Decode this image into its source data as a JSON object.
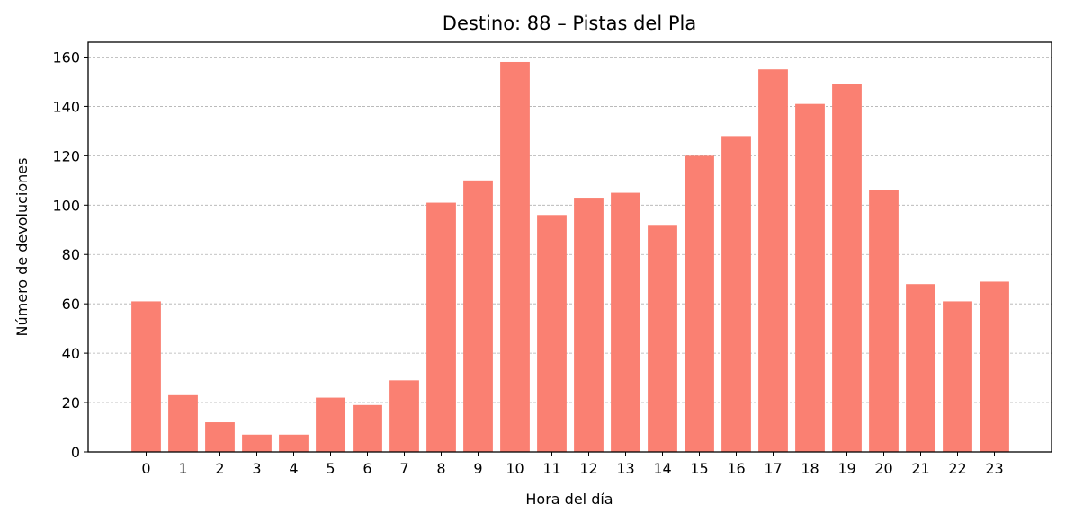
{
  "chart_data": {
    "type": "bar",
    "title": "Destino: 88 – Pistas del Pla",
    "xlabel": "Hora del día",
    "ylabel": "Número de devoluciones",
    "categories": [
      "0",
      "1",
      "2",
      "3",
      "4",
      "5",
      "6",
      "7",
      "8",
      "9",
      "10",
      "11",
      "12",
      "13",
      "14",
      "15",
      "16",
      "17",
      "18",
      "19",
      "20",
      "21",
      "22",
      "23"
    ],
    "values": [
      61,
      23,
      12,
      7,
      7,
      22,
      19,
      29,
      101,
      110,
      158,
      96,
      103,
      105,
      92,
      120,
      128,
      155,
      141,
      149,
      106,
      68,
      61,
      69
    ],
    "ylim": [
      0,
      166
    ],
    "yticks": [
      0,
      20,
      40,
      60,
      80,
      100,
      120,
      140,
      160
    ],
    "grid": "horizontal-dashed",
    "bar_color": "#fa8072"
  }
}
